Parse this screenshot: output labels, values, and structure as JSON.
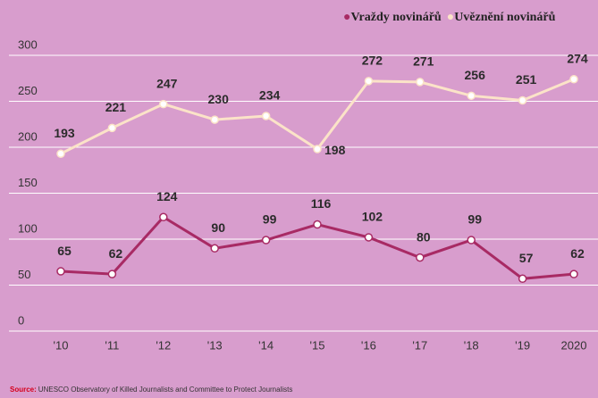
{
  "chart_data": {
    "type": "line",
    "categories": [
      "'10",
      "'11",
      "'12",
      "'13",
      "'14",
      "'15",
      "'16",
      "'17",
      "'18",
      "'19",
      "2020"
    ],
    "series": [
      {
        "name": "Vraždy novinářů",
        "color": "#a82a64",
        "values": [
          65,
          62,
          124,
          90,
          99,
          116,
          102,
          80,
          99,
          57,
          62
        ]
      },
      {
        "name": "Uvěznění novinářů",
        "color": "#fbe3c8",
        "values": [
          193,
          221,
          247,
          230,
          234,
          198,
          272,
          271,
          256,
          251,
          274
        ]
      }
    ],
    "ylim": [
      0,
      300
    ],
    "yticks": [
      0,
      50,
      100,
      150,
      200,
      250,
      300
    ],
    "grid": true,
    "source_label": "Source:",
    "source": "UNESCO Observatory of Killed Journalists and Committee to Protect Journalists"
  }
}
